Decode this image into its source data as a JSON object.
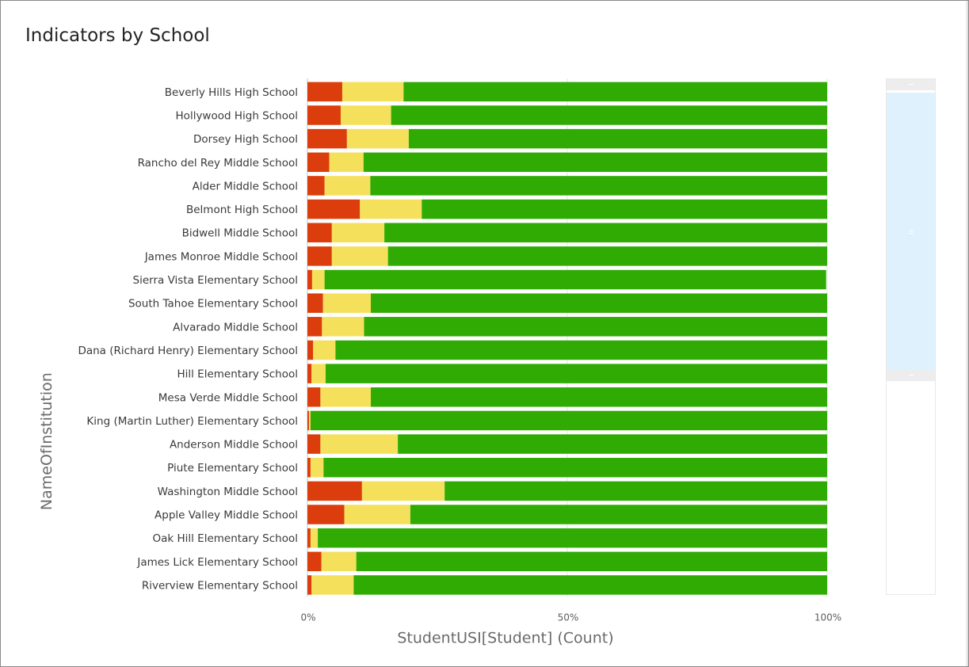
{
  "title": "Indicators by School",
  "chart_data": {
    "type": "bar",
    "orientation": "horizontal",
    "stacked": "100%",
    "title": "Indicators by School",
    "ylabel": "NameOfInstitution",
    "xlabel": "StudentUSI[Student] (Count)",
    "xticks": [
      "0%",
      "50%",
      "100%"
    ],
    "xlim": [
      0,
      100
    ],
    "grid": true,
    "colors": [
      "#dc3d0c",
      "#f5e05b",
      "#2fab04"
    ],
    "categories": [
      "Beverly Hills High School",
      "Hollywood High School",
      "Dorsey High School",
      "Rancho del Rey Middle School",
      "Alder Middle School",
      "Belmont High School",
      "Bidwell Middle School",
      "James Monroe Middle School",
      "Sierra Vista Elementary School",
      "South Tahoe Elementary School",
      "Alvarado Middle School",
      "Dana (Richard Henry) Elementary School",
      "Hill Elementary School",
      "Mesa Verde Middle School",
      "King (Martin Luther) Elementary School",
      "Anderson  Middle School",
      "Piute Elementary School",
      "Washington Middle School",
      "Apple Valley Middle School",
      "Oak Hill Elementary School",
      "James Lick Elementary School",
      "Riverview Elementary School"
    ],
    "series": [
      {
        "color": "#dc3d0c",
        "values": [
          6.7,
          6.4,
          7.6,
          4.2,
          3.3,
          10.1,
          4.7,
          4.7,
          0.9,
          3.0,
          2.8,
          1.1,
          0.8,
          2.5,
          0.3,
          2.5,
          0.6,
          10.5,
          7.1,
          0.6,
          2.7,
          0.8
        ]
      },
      {
        "color": "#f5e05b",
        "values": [
          11.8,
          9.7,
          11.9,
          6.6,
          8.8,
          11.9,
          10.1,
          10.8,
          2.4,
          9.2,
          8.1,
          4.3,
          2.7,
          9.7,
          0.3,
          14.9,
          2.5,
          15.9,
          12.7,
          1.4,
          6.7,
          8.1
        ]
      },
      {
        "color": "#2fab04",
        "values": [
          81.5,
          83.9,
          80.5,
          89.2,
          87.9,
          78.0,
          85.2,
          84.5,
          96.5,
          87.8,
          89.1,
          94.6,
          96.5,
          87.8,
          99.4,
          82.6,
          96.9,
          73.6,
          80.2,
          98.0,
          90.6,
          91.1
        ]
      }
    ]
  },
  "scrollbar": {
    "visible_fraction": 0.54
  }
}
